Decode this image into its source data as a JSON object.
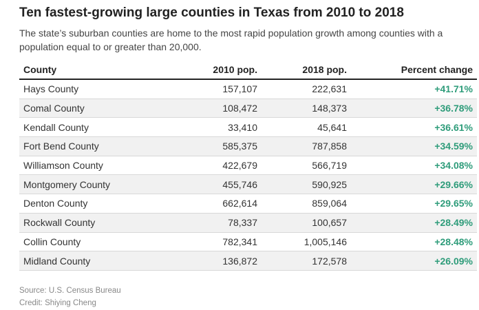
{
  "title": "Ten fastest-growing large counties in Texas from 2010 to 2018",
  "subtitle": "The state’s suburban counties are home to the most rapid population growth among counties with a population equal to or greater than 20,000.",
  "table": {
    "headers": [
      "County",
      "2010 pop.",
      "2018 pop.",
      "Percent change"
    ],
    "rows": [
      [
        "Hays County",
        "157,107",
        "222,631",
        "+41.71%"
      ],
      [
        "Comal County",
        "108,472",
        "148,373",
        "+36.78%"
      ],
      [
        "Kendall County",
        "33,410",
        "45,641",
        "+36.61%"
      ],
      [
        "Fort Bend County",
        "585,375",
        "787,858",
        "+34.59%"
      ],
      [
        "Williamson County",
        "422,679",
        "566,719",
        "+34.08%"
      ],
      [
        "Montgomery County",
        "455,746",
        "590,925",
        "+29.66%"
      ],
      [
        "Denton County",
        "662,614",
        "859,064",
        "+29.65%"
      ],
      [
        "Rockwall County",
        "78,337",
        "100,657",
        "+28.49%"
      ],
      [
        "Collin County",
        "782,341",
        "1,005,146",
        "+28.48%"
      ],
      [
        "Midland County",
        "136,872",
        "172,578",
        "+26.09%"
      ]
    ]
  },
  "footer": {
    "source": "Source: U.S. Census Bureau",
    "credit": "Credit: Shiying Cheng"
  },
  "colors": {
    "positive_change": "#2e9c7a",
    "alt_row": "#f1f1f1"
  }
}
